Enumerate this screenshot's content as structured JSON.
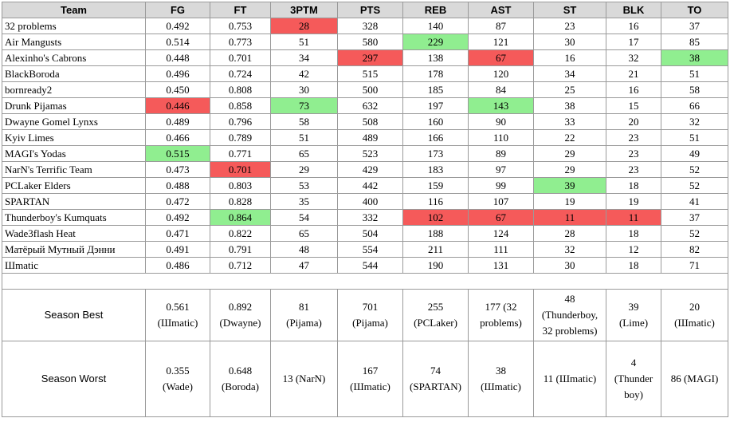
{
  "headers": [
    "Team",
    "FG",
    "FT",
    "3PTM",
    "PTS",
    "REB",
    "AST",
    "ST",
    "BLK",
    "TO"
  ],
  "colors": {
    "header_bg": "#d9d9d9",
    "best": "#90ee90",
    "worst": "#f55a5a",
    "border": "#9a9a9a"
  },
  "rows": [
    {
      "team": "32 problems",
      "fg": "0.492",
      "ft": "0.753",
      "tptm": "28",
      "pts": "328",
      "reb": "140",
      "ast": "87",
      "st": "23",
      "blk": "16",
      "to": "37"
    },
    {
      "team": "Air Mangusts",
      "fg": "0.514",
      "ft": "0.773",
      "tptm": "51",
      "pts": "580",
      "reb": "229",
      "ast": "121",
      "st": "30",
      "blk": "17",
      "to": "85"
    },
    {
      "team": "Alexinho's Cabrons",
      "fg": "0.448",
      "ft": "0.701",
      "tptm": "34",
      "pts": "297",
      "reb": "138",
      "ast": "67",
      "st": "16",
      "blk": "32",
      "to": "38"
    },
    {
      "team": "BlackBoroda",
      "fg": "0.496",
      "ft": "0.724",
      "tptm": "42",
      "pts": "515",
      "reb": "178",
      "ast": "120",
      "st": "34",
      "blk": "21",
      "to": "51"
    },
    {
      "team": "bornready2",
      "fg": "0.450",
      "ft": "0.808",
      "tptm": "30",
      "pts": "500",
      "reb": "185",
      "ast": "84",
      "st": "25",
      "blk": "16",
      "to": "58"
    },
    {
      "team": "Drunk Pijamas",
      "fg": "0.446",
      "ft": "0.858",
      "tptm": "73",
      "pts": "632",
      "reb": "197",
      "ast": "143",
      "st": "38",
      "blk": "15",
      "to": "66"
    },
    {
      "team": "Dwayne Gomel Lynxs",
      "fg": "0.489",
      "ft": "0.796",
      "tptm": "58",
      "pts": "508",
      "reb": "160",
      "ast": "90",
      "st": "33",
      "blk": "20",
      "to": "32"
    },
    {
      "team": "Kyiv Limes",
      "fg": "0.466",
      "ft": "0.789",
      "tptm": "51",
      "pts": "489",
      "reb": "166",
      "ast": "110",
      "st": "22",
      "blk": "23",
      "to": "51"
    },
    {
      "team": "MAGI's Yodas",
      "fg": "0.515",
      "ft": "0.771",
      "tptm": "65",
      "pts": "523",
      "reb": "173",
      "ast": "89",
      "st": "29",
      "blk": "23",
      "to": "49"
    },
    {
      "team": "NarN's Terrific Team",
      "fg": "0.473",
      "ft": "0.701",
      "tptm": "29",
      "pts": "429",
      "reb": "183",
      "ast": "97",
      "st": "29",
      "blk": "23",
      "to": "52"
    },
    {
      "team": "PCLaker Elders",
      "fg": "0.488",
      "ft": "0.803",
      "tptm": "53",
      "pts": "442",
      "reb": "159",
      "ast": "99",
      "st": "39",
      "blk": "18",
      "to": "52"
    },
    {
      "team": "SPARTAN",
      "fg": "0.472",
      "ft": "0.828",
      "tptm": "35",
      "pts": "400",
      "reb": "116",
      "ast": "107",
      "st": "19",
      "blk": "19",
      "to": "41"
    },
    {
      "team": "Thunderboy's Kumquats",
      "fg": "0.492",
      "ft": "0.864",
      "tptm": "54",
      "pts": "332",
      "reb": "102",
      "ast": "67",
      "st": "11",
      "blk": "11",
      "to": "37"
    },
    {
      "team": "Wade3flash Heat",
      "fg": "0.471",
      "ft": "0.822",
      "tptm": "65",
      "pts": "504",
      "reb": "188",
      "ast": "124",
      "st": "28",
      "blk": "18",
      "to": "52"
    },
    {
      "team": "Матёрый Мутный Дэнни",
      "fg": "0.491",
      "ft": "0.791",
      "tptm": "48",
      "pts": "554",
      "reb": "211",
      "ast": "111",
      "st": "32",
      "blk": "12",
      "to": "82"
    },
    {
      "team": "Шmatic",
      "fg": "0.486",
      "ft": "0.712",
      "tptm": "47",
      "pts": "544",
      "reb": "190",
      "ast": "131",
      "st": "30",
      "blk": "18",
      "to": "71"
    }
  ],
  "highlights": {
    "best": [
      [
        1,
        4
      ],
      [
        2,
        8
      ],
      [
        5,
        2
      ],
      [
        5,
        5
      ],
      [
        6,
        9
      ],
      [
        8,
        0
      ],
      [
        10,
        6
      ],
      [
        12,
        1
      ]
    ],
    "worst": [
      [
        0,
        2
      ],
      [
        1,
        9
      ],
      [
        2,
        3
      ],
      [
        2,
        5
      ],
      [
        5,
        0
      ],
      [
        9,
        1
      ],
      [
        12,
        4
      ],
      [
        12,
        5
      ],
      [
        12,
        6
      ],
      [
        12,
        7
      ]
    ]
  },
  "season_best": {
    "label": "Season Best",
    "cells": [
      [
        "0.561",
        "(Шmatic)"
      ],
      [
        "0.892",
        "(Dwayne)"
      ],
      [
        "81",
        "(Pijama)"
      ],
      [
        "701",
        "(Pijama)"
      ],
      [
        "255",
        "(PCLaker)"
      ],
      [
        "177 (32",
        "problems)"
      ],
      [
        "48",
        "(Thunderboy,",
        "32 problems)"
      ],
      [
        "39",
        "(Lime)"
      ],
      [
        "20",
        "(Шmatic)"
      ]
    ]
  },
  "season_worst": {
    "label": "Season Worst",
    "cells": [
      [
        "0.355",
        "(Wade)"
      ],
      [
        "0.648",
        "(Boroda)"
      ],
      [
        "13 (NarN)"
      ],
      [
        "167",
        "(Шmatic)"
      ],
      [
        "74",
        "(SPARTAN)"
      ],
      [
        "38",
        "(Шmatic)"
      ],
      [
        "11 (Шmatic)"
      ],
      [
        "4",
        "(Thunder",
        "boy)"
      ],
      [
        "86 (MAGI)"
      ]
    ]
  }
}
